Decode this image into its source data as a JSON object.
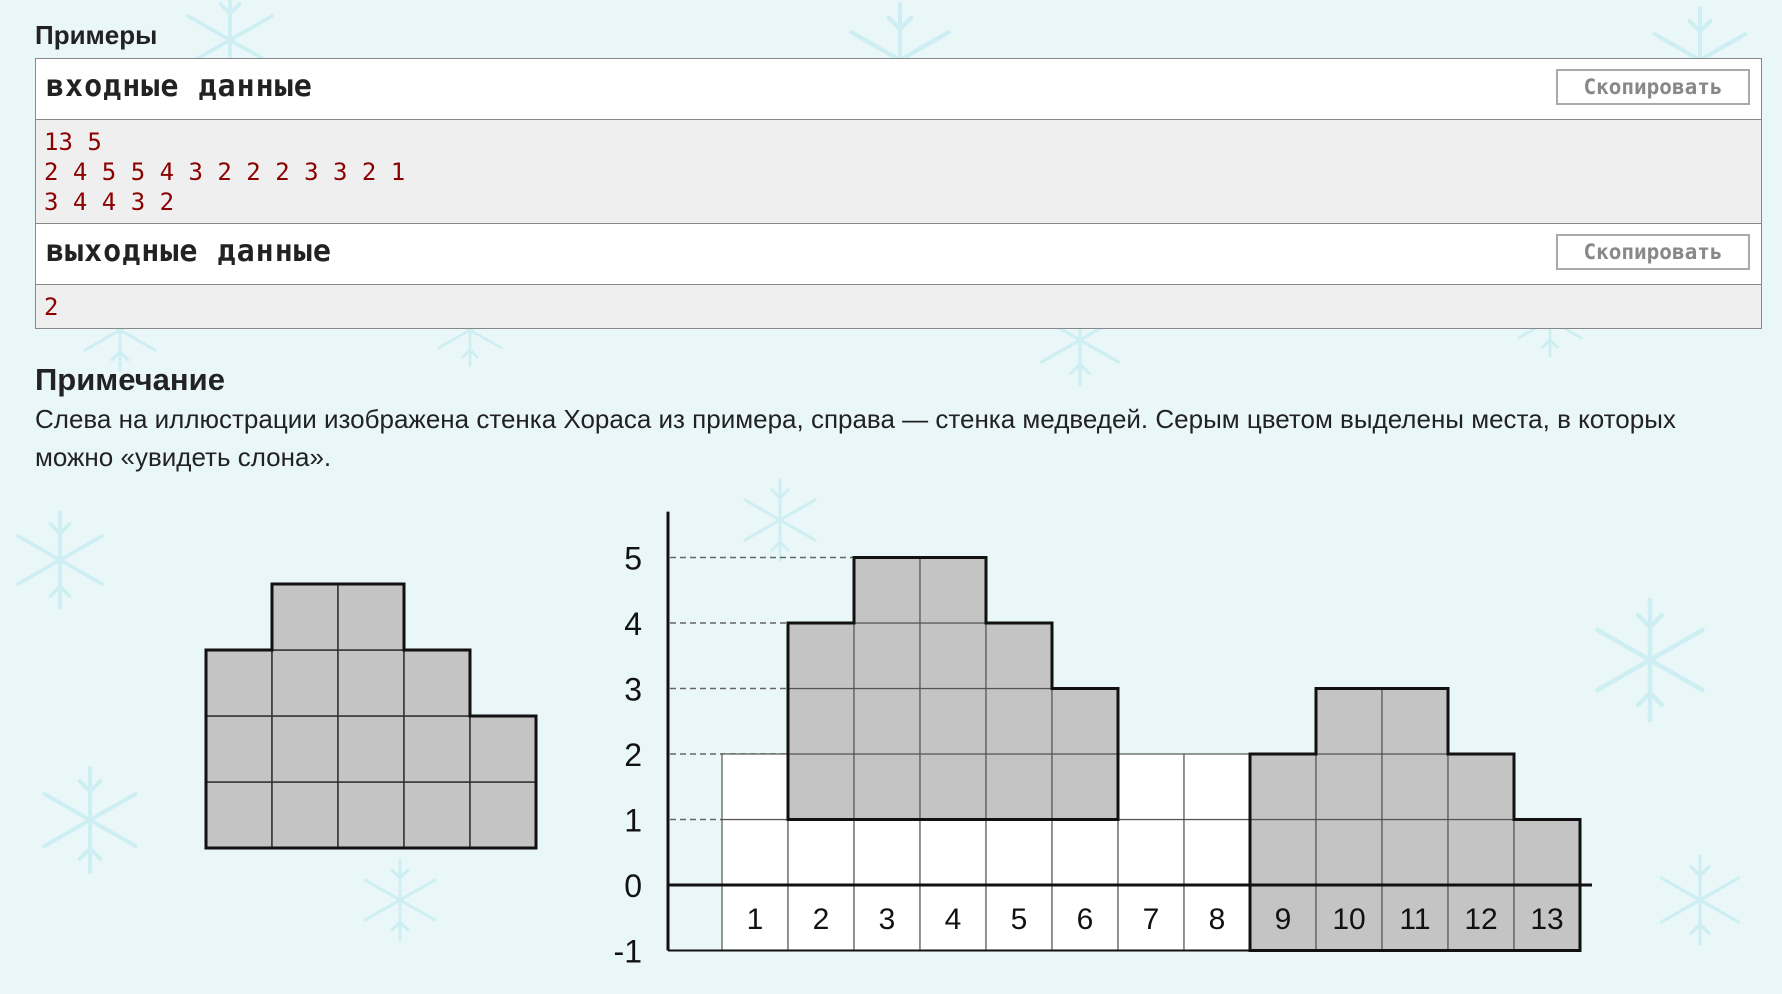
{
  "examples": {
    "title": "Примеры",
    "input": {
      "title": "входные данные",
      "copy_label": "Скопировать",
      "lines": [
        "13 5",
        "2 4 5 5 4 3 2 2 2 3 3 2 1",
        "3 4 4 3 2"
      ]
    },
    "output": {
      "title": "выходные данные",
      "copy_label": "Скопировать",
      "lines": [
        "2"
      ]
    }
  },
  "note": {
    "title": "Примечание",
    "text": "Слева на иллюстрации изображена стенка Хораса из примера, справа — стенка медведей. Серым цветом выделены места, в которых можно «увидеть слона»."
  },
  "figure": {
    "bears_wall_heights": [
      3,
      4,
      4,
      3,
      2
    ],
    "horace_wall_heights": [
      2,
      4,
      5,
      5,
      4,
      3,
      2,
      2,
      2,
      3,
      3,
      2,
      1
    ],
    "y_tick_labels": [
      "5",
      "4",
      "3",
      "2",
      "1",
      "0",
      "-1"
    ],
    "x_tick_labels": [
      "1",
      "2",
      "3",
      "4",
      "5",
      "6",
      "7",
      "8",
      "9",
      "10",
      "11",
      "12",
      "13"
    ],
    "highlight_matches": [
      {
        "start": 2,
        "end": 6,
        "offset": 1
      },
      {
        "start": 9,
        "end": 13,
        "offset": 0
      }
    ],
    "colors": {
      "cell_gray": "#c4c4c4",
      "grid": "#333333"
    }
  }
}
